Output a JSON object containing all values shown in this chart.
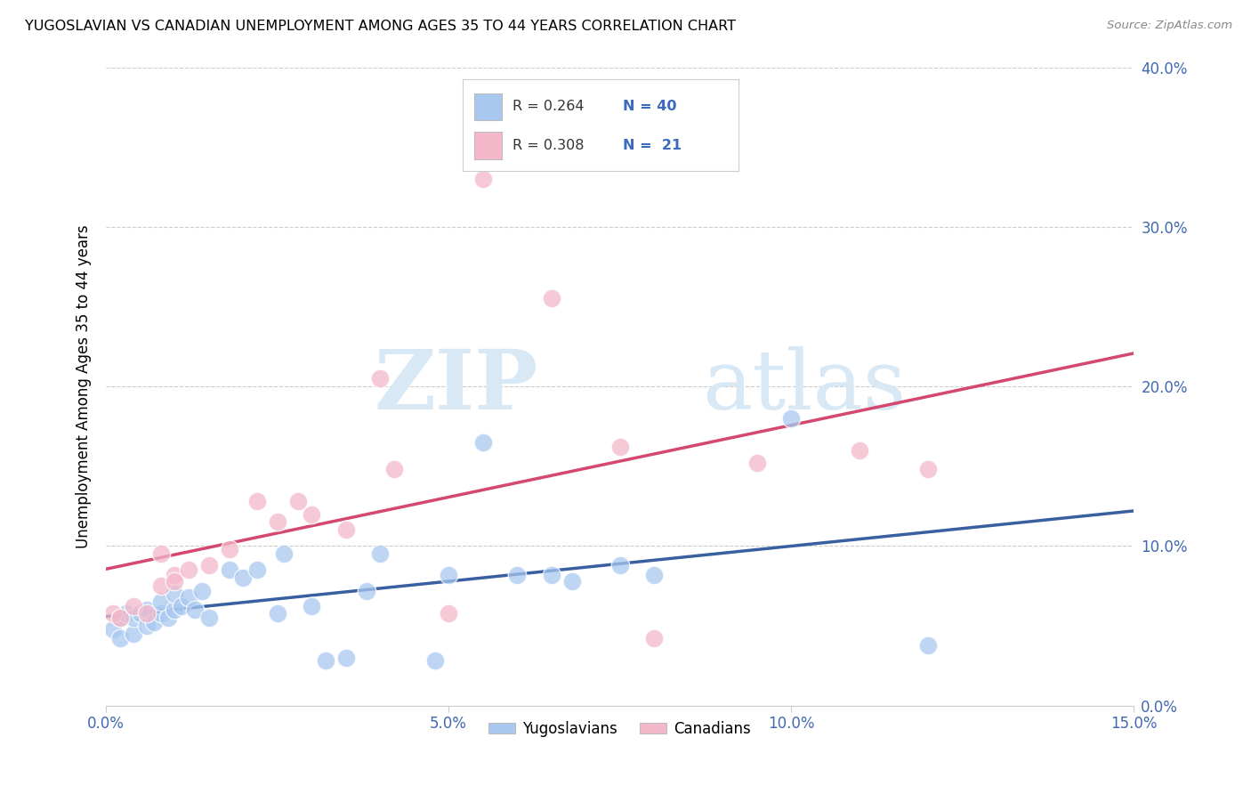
{
  "title": "YUGOSLAVIAN VS CANADIAN UNEMPLOYMENT AMONG AGES 35 TO 44 YEARS CORRELATION CHART",
  "source": "Source: ZipAtlas.com",
  "ylabel_label": "Unemployment Among Ages 35 to 44 years",
  "legend_labels": [
    "Yugoslavians",
    "Canadians"
  ],
  "yug_color": "#a8c8f0",
  "can_color": "#f4b8ca",
  "yug_line_color": "#3a5fa0",
  "can_line_color": "#d44870",
  "watermark_zip": "ZIP",
  "watermark_atlas": "atlas",
  "xlim": [
    0.0,
    0.15
  ],
  "ylim": [
    0.0,
    0.4
  ],
  "xtick_vals": [
    0.0,
    0.05,
    0.1,
    0.15
  ],
  "xtick_labels": [
    "0.0%",
    "5.0%",
    "10.0%",
    "15.0%"
  ],
  "ytick_vals": [
    0.0,
    0.1,
    0.2,
    0.3,
    0.4
  ],
  "ytick_labels": [
    "0.0%",
    "10.0%",
    "20.0%",
    "30.0%",
    "40.0%"
  ],
  "yug_x": [
    0.001,
    0.002,
    0.002,
    0.003,
    0.004,
    0.004,
    0.005,
    0.006,
    0.006,
    0.007,
    0.008,
    0.008,
    0.009,
    0.01,
    0.01,
    0.011,
    0.012,
    0.013,
    0.014,
    0.015,
    0.018,
    0.02,
    0.022,
    0.025,
    0.026,
    0.03,
    0.032,
    0.035,
    0.038,
    0.04,
    0.048,
    0.05,
    0.055,
    0.06,
    0.065,
    0.068,
    0.075,
    0.08,
    0.1,
    0.12
  ],
  "yug_y": [
    0.048,
    0.042,
    0.055,
    0.058,
    0.045,
    0.055,
    0.058,
    0.05,
    0.06,
    0.052,
    0.058,
    0.065,
    0.055,
    0.06,
    0.07,
    0.062,
    0.068,
    0.06,
    0.072,
    0.055,
    0.085,
    0.08,
    0.085,
    0.058,
    0.095,
    0.062,
    0.028,
    0.03,
    0.072,
    0.095,
    0.028,
    0.082,
    0.165,
    0.082,
    0.082,
    0.078,
    0.088,
    0.082,
    0.18,
    0.038
  ],
  "can_x": [
    0.001,
    0.002,
    0.004,
    0.006,
    0.008,
    0.008,
    0.01,
    0.01,
    0.012,
    0.015,
    0.018,
    0.022,
    0.025,
    0.028,
    0.03,
    0.035,
    0.04,
    0.042,
    0.05,
    0.055,
    0.065,
    0.075,
    0.08,
    0.095,
    0.11,
    0.12
  ],
  "can_y": [
    0.058,
    0.055,
    0.062,
    0.058,
    0.075,
    0.095,
    0.082,
    0.078,
    0.085,
    0.088,
    0.098,
    0.128,
    0.115,
    0.128,
    0.12,
    0.11,
    0.205,
    0.148,
    0.058,
    0.33,
    0.255,
    0.162,
    0.042,
    0.152,
    0.16,
    0.148
  ]
}
